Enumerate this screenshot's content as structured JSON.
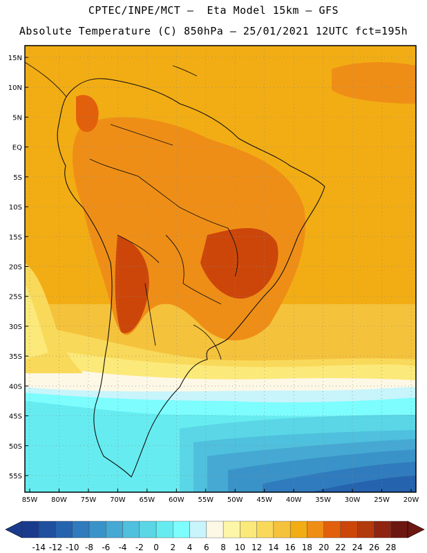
{
  "header": {
    "line1": "CPTEC/INPE/MCT –  Eta Model 15km – GFS",
    "line2": "Absolute Temperature (C) 850hPa – 25/01/2021 12UTC fct=195h"
  },
  "map": {
    "lat_labels": [
      "15N",
      "10N",
      "5N",
      "EQ",
      "5S",
      "10S",
      "15S",
      "20S",
      "25S",
      "30S",
      "35S",
      "40S",
      "45S",
      "50S",
      "55S"
    ],
    "lon_labels": [
      "85W",
      "80W",
      "75W",
      "70W",
      "65W",
      "60W",
      "55W",
      "50W",
      "45W",
      "40W",
      "35W",
      "30W",
      "25W",
      "20W"
    ],
    "lon_range": [
      -85,
      -20
    ],
    "lat_range": [
      -58,
      17
    ]
  },
  "colorbar": {
    "labels": [
      "-14",
      "-12",
      "-10",
      "-8",
      "-6",
      "-4",
      "-2",
      "0",
      "2",
      "4",
      "6",
      "8",
      "10",
      "12",
      "14",
      "16",
      "18",
      "20",
      "22",
      "24",
      "26",
      "28"
    ],
    "colors": [
      "#1a3b8c",
      "#1f4f9e",
      "#2563ae",
      "#2f7bbd",
      "#3a93c8",
      "#45a9d3",
      "#4fc0dd",
      "#5ad6e6",
      "#66ecf0",
      "#7dfdfd",
      "#c8f4fb",
      "#fdf8e6",
      "#fdf6a9",
      "#fbe97a",
      "#f9d95a",
      "#f5c23c",
      "#f2ad14",
      "#ef8e16",
      "#e2600b",
      "#cc460a",
      "#b23a0d",
      "#8f2410",
      "#6d1711"
    ],
    "units": "C"
  }
}
